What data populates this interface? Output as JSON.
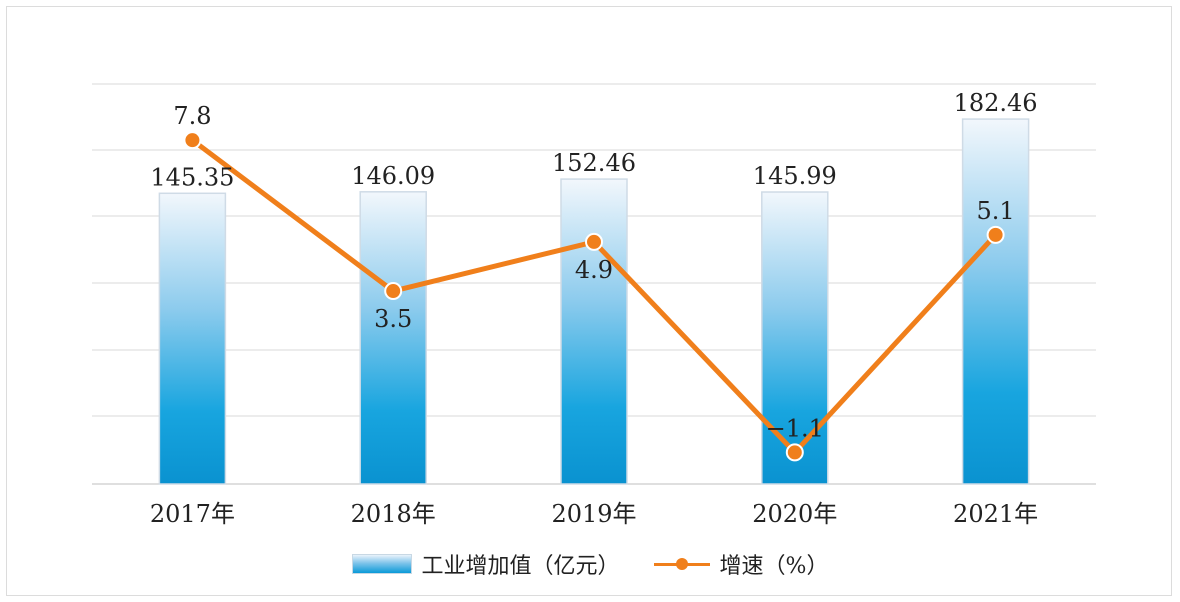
{
  "chart_data": {
    "type": "bar",
    "categories": [
      "2017年",
      "2018年",
      "2019年",
      "2020年",
      "2021年"
    ],
    "series": [
      {
        "name": "工业增加值（亿元）",
        "type": "bar",
        "values": [
          145.35,
          146.09,
          152.46,
          145.99,
          182.46
        ],
        "color": "#0a9ad8"
      },
      {
        "name": "增速（%）",
        "type": "line",
        "values": [
          7.8,
          3.5,
          4.9,
          -1.1,
          5.1
        ],
        "color": "#f07f1b"
      }
    ],
    "value_labels_bar": [
      "145.35",
      "146.09",
      "152.46",
      "145.99",
      "182.46"
    ],
    "value_labels_line": [
      "7.8",
      "3.5",
      "4.9",
      "−1.1",
      "5.1"
    ],
    "grid": true,
    "legend_position": "bottom"
  },
  "legend": {
    "bar_label": "工业增加值（亿元）",
    "line_label": "增速（%）"
  }
}
